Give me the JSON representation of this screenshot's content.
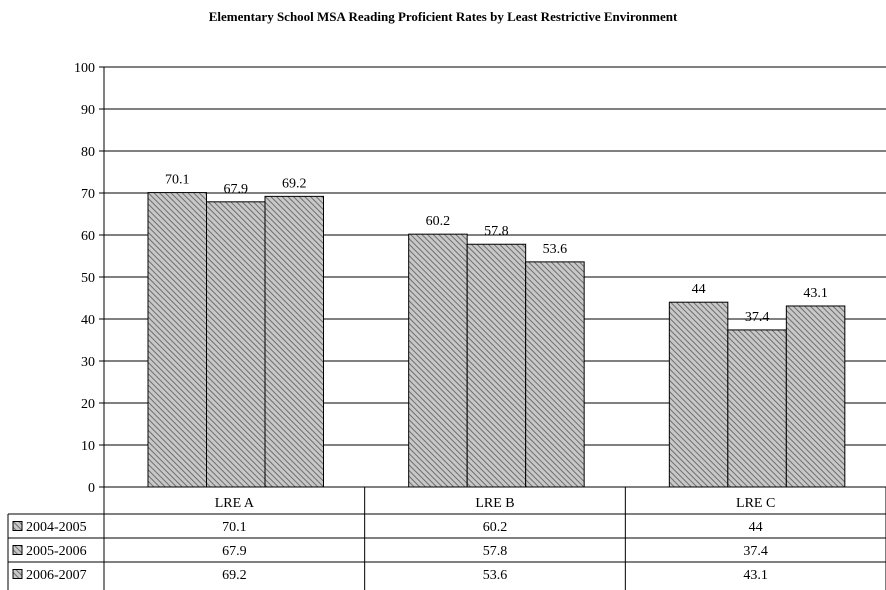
{
  "chart_data": {
    "type": "bar",
    "title": "Elementary School MSA Reading Proficient Rates by Least Restrictive Environment",
    "xlabel": "",
    "ylabel": "",
    "ylim": [
      0,
      100
    ],
    "yticks": [
      0,
      10,
      20,
      30,
      40,
      50,
      60,
      70,
      80,
      90,
      100
    ],
    "grid": true,
    "legend": "data-table-left",
    "categories": [
      "LRE A",
      "LRE B",
      "LRE C"
    ],
    "series": [
      {
        "name": "2004-2005",
        "values": [
          70.1,
          60.2,
          44
        ]
      },
      {
        "name": "2005-2006",
        "values": [
          67.9,
          57.8,
          37.4
        ]
      },
      {
        "name": "2006-2007",
        "values": [
          69.2,
          53.6,
          43.1
        ]
      }
    ],
    "data_labels": [
      [
        "70.1",
        "60.2",
        "44"
      ],
      [
        "67.9",
        "57.8",
        "37.4"
      ],
      [
        "69.2",
        "53.6",
        "43.1"
      ]
    ],
    "colors": {
      "bar_fill": "#c8c8c8",
      "hatch": "#6e6e6e",
      "grid": "#000000"
    }
  }
}
